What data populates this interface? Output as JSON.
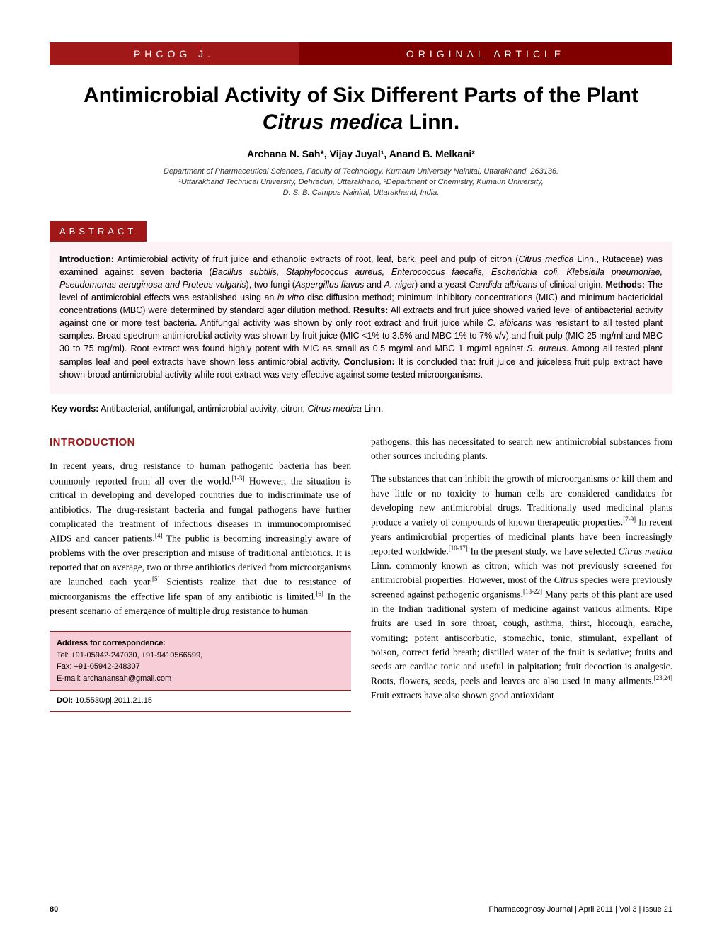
{
  "header": {
    "left_label": "PHCOG J.",
    "right_label": "ORIGINAL ARTICLE",
    "left_bg": "#a01818",
    "right_bg": "#800000",
    "text_color": "#ffffff"
  },
  "title": {
    "line1": "Antimicrobial Activity of Six Different Parts of the Plant",
    "italic_part": "Citrus medica",
    "after_italic": " Linn.",
    "fontsize": 30
  },
  "authors": "Archana N. Sah*, Vijay Juyal¹, Anand B. Melkani²",
  "affiliations": [
    "Department of Pharmaceutical Sciences, Faculty of Technology, Kumaun University Nainital, Uttarakhand, 263136.",
    "¹Uttarakhand Technical University, Dehradun, Uttarakhand, ²Department of Chemistry, Kumaun University,",
    "D. S. B. Campus Nainital, Uttarakhand, India."
  ],
  "abstract": {
    "label": "ABSTRACT",
    "label_bg": "#a01818",
    "box_bg": "#fdf2f5",
    "intro_label": "Introduction:",
    "intro_text": " Antimicrobial activity of fruit juice and ethanolic extracts of root, leaf, bark, peel and pulp of citron (",
    "intro_italic1": "Citrus medica",
    "intro_text2": " Linn., Rutaceae) was examined against seven bacteria (",
    "intro_italic2": "Bacillus subtilis, Staphylococcus aureus, Enterococcus faecalis, Escherichia coli, Klebsiella pneumoniae, Pseudomonas aeruginosa and Proteus vulgaris",
    "intro_text3": "), two fungi (",
    "intro_italic3": "Aspergillus flavus",
    "intro_text4": " and ",
    "intro_italic4": "A. niger",
    "intro_text5": ") and a yeast ",
    "intro_italic5": "Candida albicans",
    "intro_text6": " of clinical origin. ",
    "methods_label": "Methods:",
    "methods_text": " The level of antimicrobial effects was established using an ",
    "methods_italic": "in vitro",
    "methods_text2": " disc diffusion method; minimum inhibitory concentrations (MIC) and minimum bactericidal concentrations (MBC) were determined by standard agar dilution method. ",
    "results_label": "Results:",
    "results_text": " All extracts and fruit juice showed varied level of antibacterial activity against one or more test bacteria. Antifungal activity was shown by only root extract and fruit juice while ",
    "results_italic1": "C. albicans",
    "results_text2": " was resistant to all tested plant samples. Broad spectrum antimicrobial activity was shown by fruit juice (MIC <1% to 3.5% and MBC 1% to 7% v/v) and fruit pulp (MIC 25 mg/ml and MBC 30 to 75 mg/ml). Root extract was found highly potent with MIC as small as 0.5 mg/ml and MBC 1 mg/ml against ",
    "results_italic2": "S. aureus",
    "results_text3": ". Among all tested plant samples leaf and peel extracts have shown less antimicrobial activity. ",
    "conclusion_label": "Conclusion:",
    "conclusion_text": " It is concluded that fruit juice and juiceless fruit pulp extract have shown broad antimicrobial activity while root extract was very effective against some tested microorganisms."
  },
  "keywords": {
    "label": "Key words:",
    "text": " Antibacterial, antifungal, antimicrobial activity, citron, ",
    "italic": "Citrus medica",
    "after": " Linn."
  },
  "introduction": {
    "heading": "INTRODUCTION",
    "heading_color": "#a01818",
    "p1_a": "In recent years, drug resistance to human pathogenic bacteria has been commonly reported from all over the world.",
    "p1_ref1": "[1-3]",
    "p1_b": " However, the situation is critical in developing and developed countries due to indiscriminate use of antibiotics. The drug-resistant bacteria and fungal pathogens have further complicated the treatment of infectious diseases in immunocompromised AIDS and cancer patients.",
    "p1_ref2": "[4]",
    "p1_c": " The public is becoming increasingly aware of problems with the over prescription and misuse of traditional antibiotics. It is reported that on average, two or three antibiotics derived from microorganisms are launched each year.",
    "p1_ref3": "[5]",
    "p1_d": " Scientists realize that due to resistance of microorganisms the effective life span of any antibiotic is limited.",
    "p1_ref4": "[6]",
    "p1_e": " In the present scenario of emergence of multiple drug resistance to human",
    "p2_top": "pathogens, this has necessitated to search new antimicrobial substances from other sources including plants.",
    "p3_a": "The substances that can inhibit the growth of microorganisms or kill them and have little or no toxicity to human cells are considered candidates for developing new antimicrobial drugs. Traditionally used medicinal plants produce a variety of compounds of known therapeutic properties.",
    "p3_ref1": "[7-9]",
    "p3_b": " In recent years antimicrobial properties of medicinal plants have been increasingly reported worldwide.",
    "p3_ref2": "[10-17]",
    "p3_c": " In the present study, we have selected ",
    "p3_italic1": "Citrus medica",
    "p3_d": " Linn. commonly known as citron; which was not previously screened for antimicrobial properties. However, most of the ",
    "p3_italic2": "Citrus",
    "p3_e": " species were previously screened against pathogenic organisms.",
    "p3_ref3": "[18-22]",
    "p3_f": " Many parts of this plant are used in the Indian traditional system of medicine against various ailments. Ripe fruits are used in sore throat, cough, asthma, thirst, hiccough, earache, vomiting; potent antiscorbutic, stomachic, tonic, stimulant, expellant of poison, correct fetid breath; distilled water of the fruit is sedative; fruits and seeds are cardiac tonic and useful in palpitation; fruit decoction is analgesic. Roots, flowers, seeds, peels and leaves are also used in many ailments.",
    "p3_ref4": "[23,24]",
    "p3_g": " Fruit extracts have also shown good antioxidant"
  },
  "correspondence": {
    "label": "Address for correspondence:",
    "tel": "Tel: +91-05942-247030, +91-9410566599,",
    "fax": "Fax: +91-05942-248307",
    "email": "E-mail: archanansah@gmail.com",
    "box_bg": "#f7cdd8",
    "border_color": "#a01818"
  },
  "doi": {
    "label": "DOI:",
    "value": " 10.5530/pj.2011.21.15"
  },
  "footer": {
    "page_number": "80",
    "citation": "Pharmacognosy Journal | April 2011 | Vol 3 | Issue 21"
  }
}
